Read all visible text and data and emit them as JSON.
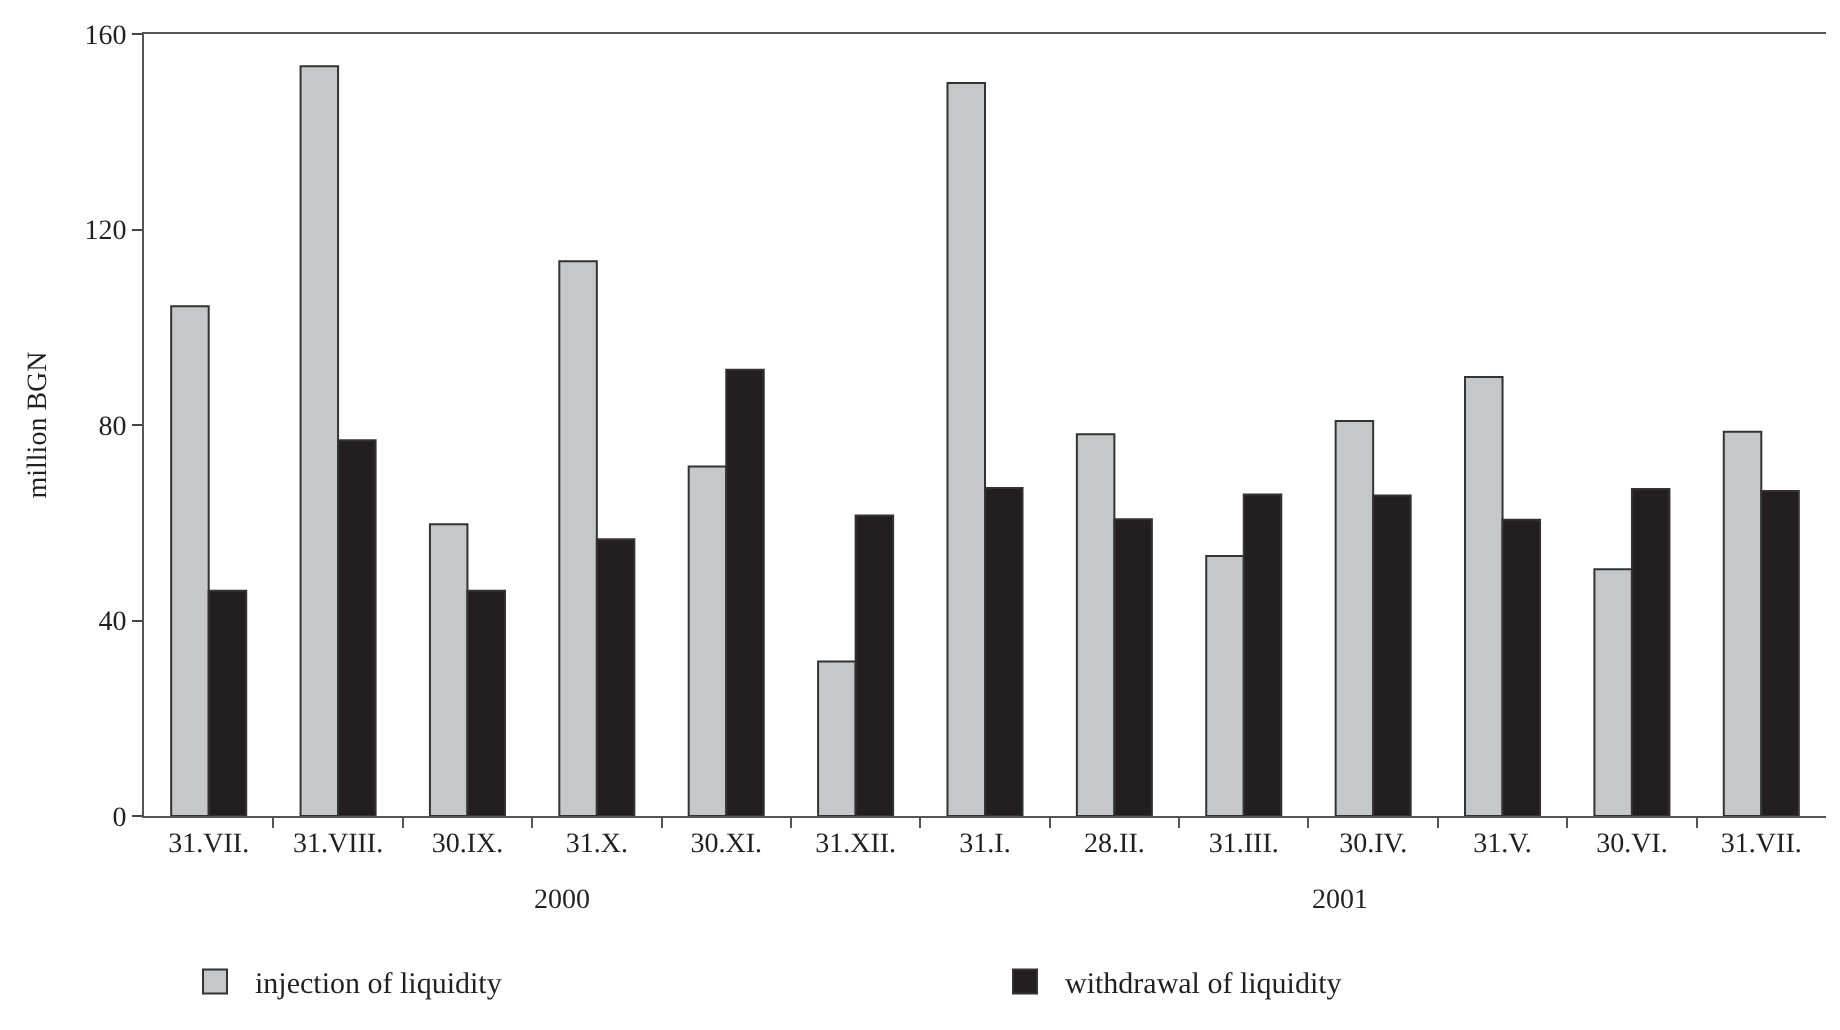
{
  "chart_data": {
    "type": "bar",
    "ylabel": "million BGN",
    "categories": [
      "31.VII.",
      "31.VIII.",
      "30.IX.",
      "31.X.",
      "30.XI.",
      "31.XII.",
      "31.I.",
      "28.II.",
      "31.III.",
      "30.IV.",
      "31.V.",
      "30.VI.",
      "31.VII."
    ],
    "series": [
      {
        "name": "injection of liquidity",
        "color": "#c6c7c9",
        "values": [
          104.3,
          153.4,
          59.7,
          113.5,
          71.5,
          31.6,
          150,
          78.1,
          53.2,
          80.8,
          89.8,
          50.5,
          78.6
        ]
      },
      {
        "name": "withdrawal of liquidity",
        "color": "#231f20",
        "values": [
          46.1,
          76.9,
          46.1,
          56.6,
          91.3,
          61.5,
          67.1,
          60.7,
          65.8,
          65.6,
          60.6,
          66.9,
          66.5
        ]
      }
    ],
    "ylim": [
      0,
      160
    ],
    "yticks": [
      0,
      40,
      80,
      120,
      160
    ],
    "annotations": [
      "2000",
      "2001"
    ],
    "legend": "bottom"
  }
}
